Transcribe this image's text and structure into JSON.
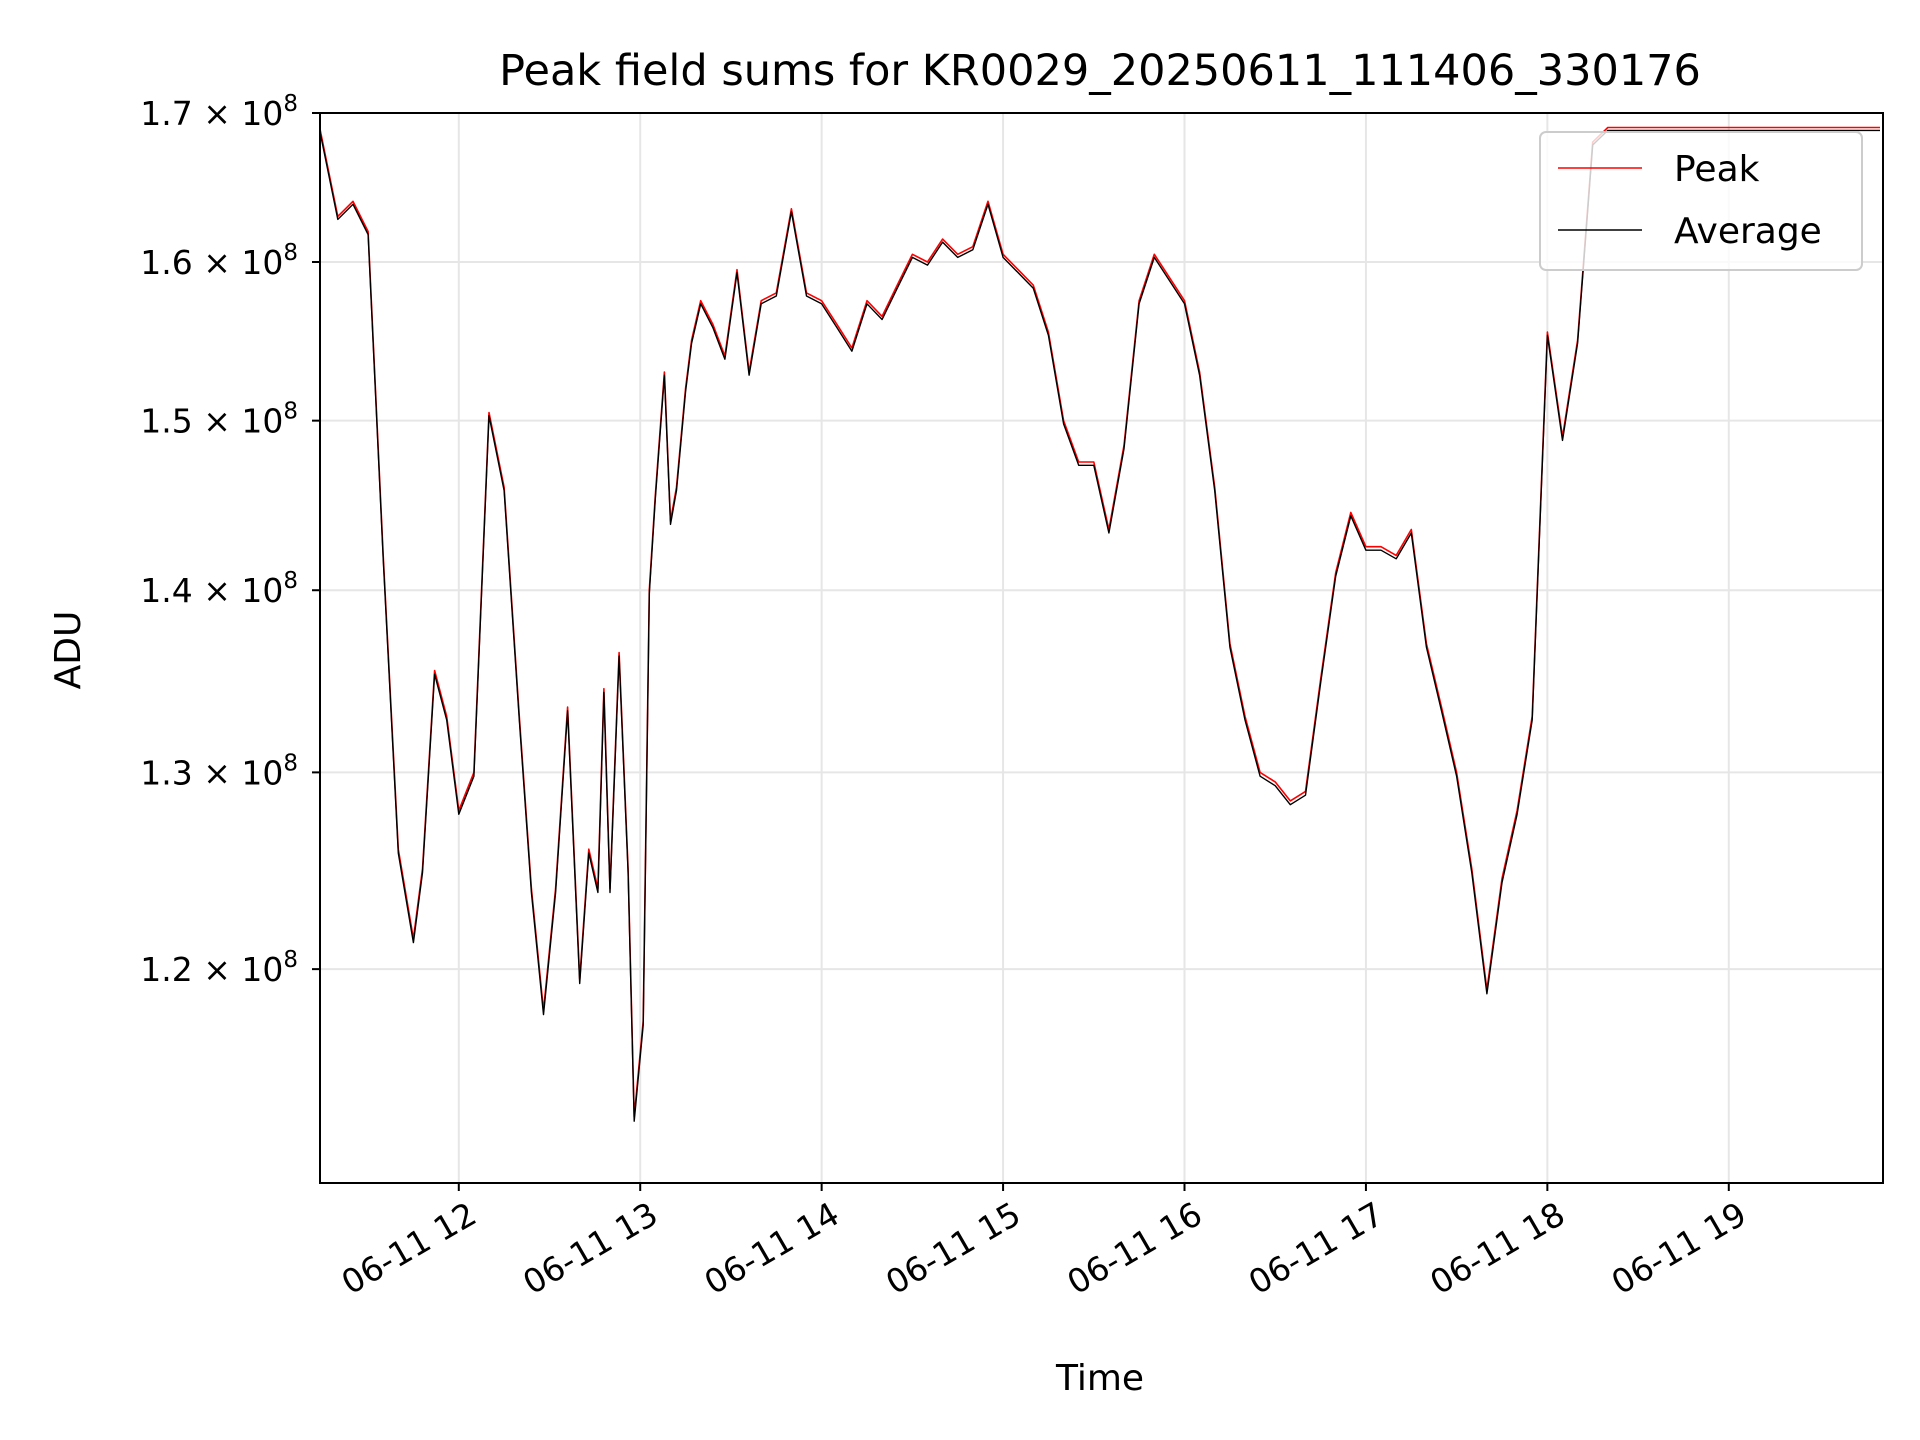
{
  "chart_data": {
    "type": "line",
    "title": "Peak field sums for KR0029_20250611_111406_330176",
    "xlabel": "Time",
    "ylabel": "ADU",
    "y_scale": "log",
    "xlim": [
      "2025-06-11T11:14:06",
      "2025-06-11T19:51:00"
    ],
    "ylim": [
      110000000,
      170000000
    ],
    "grid": true,
    "legend_position": "top-right",
    "x_ticks": [
      {
        "value": "2025-06-11T12:00",
        "label": "06-11 12"
      },
      {
        "value": "2025-06-11T13:00",
        "label": "06-11 13"
      },
      {
        "value": "2025-06-11T14:00",
        "label": "06-11 14"
      },
      {
        "value": "2025-06-11T15:00",
        "label": "06-11 15"
      },
      {
        "value": "2025-06-11T16:00",
        "label": "06-11 16"
      },
      {
        "value": "2025-06-11T17:00",
        "label": "06-11 17"
      },
      {
        "value": "2025-06-11T18:00",
        "label": "06-11 18"
      },
      {
        "value": "2025-06-11T19:00",
        "label": "06-11 19"
      }
    ],
    "y_ticks": [
      {
        "value": 120000000,
        "mantissa": "1.2 × 10",
        "exp": "8"
      },
      {
        "value": 130000000,
        "mantissa": "1.3 × 10",
        "exp": "8"
      },
      {
        "value": 140000000,
        "mantissa": "1.4 × 10",
        "exp": "8"
      },
      {
        "value": 150000000,
        "mantissa": "1.5 × 10",
        "exp": "8"
      },
      {
        "value": 160000000,
        "mantissa": "1.6 × 10",
        "exp": "8"
      },
      {
        "value": 170000000,
        "mantissa": "1.7 × 10",
        "exp": "8"
      }
    ],
    "x": [
      "11:14",
      "11:20",
      "11:25",
      "11:30",
      "11:35",
      "11:40",
      "11:45",
      "11:48",
      "11:52",
      "11:56",
      "12:00",
      "12:05",
      "12:10",
      "12:15",
      "12:20",
      "12:24",
      "12:28",
      "12:32",
      "12:36",
      "12:40",
      "12:43",
      "12:46",
      "12:48",
      "12:50",
      "12:53",
      "12:56",
      "12:58",
      "13:01",
      "13:03",
      "13:05",
      "13:08",
      "13:10",
      "13:12",
      "13:15",
      "13:17",
      "13:20",
      "13:24",
      "13:28",
      "13:32",
      "13:36",
      "13:40",
      "13:45",
      "13:50",
      "13:55",
      "14:00",
      "14:05",
      "14:10",
      "14:15",
      "14:20",
      "14:25",
      "14:30",
      "14:35",
      "14:40",
      "14:45",
      "14:50",
      "14:55",
      "15:00",
      "15:05",
      "15:10",
      "15:15",
      "15:20",
      "15:25",
      "15:30",
      "15:35",
      "15:40",
      "15:45",
      "15:50",
      "15:55",
      "16:00",
      "16:05",
      "16:10",
      "16:15",
      "16:20",
      "16:25",
      "16:30",
      "16:35",
      "16:40",
      "16:45",
      "16:50",
      "16:55",
      "17:00",
      "17:05",
      "17:10",
      "17:15",
      "17:20",
      "17:25",
      "17:30",
      "17:35",
      "17:40",
      "17:45",
      "17:50",
      "17:55",
      "18:00",
      "18:05",
      "18:10",
      "18:15",
      "18:20",
      "18:25",
      "18:30",
      "18:35",
      "18:40",
      "18:45",
      "18:50",
      "18:55",
      "19:00",
      "19:05",
      "19:10",
      "19:15",
      "19:20",
      "19:25",
      "19:30",
      "19:35",
      "19:40",
      "19:45",
      "19:50"
    ],
    "series": [
      {
        "name": "Peak",
        "color": "#ff0000",
        "values": [
          169000000,
          163000000,
          164000000,
          162000000,
          142000000,
          126000000,
          121500000,
          125000000,
          135500000,
          133000000,
          128000000,
          130000000,
          150500000,
          146000000,
          133000000,
          124000000,
          118000000,
          124000000,
          133500000,
          119500000,
          126000000,
          124000000,
          134500000,
          124000000,
          136500000,
          125000000,
          113000000,
          117500000,
          140000000,
          145500000,
          153000000,
          144000000,
          146000000,
          152000000,
          155000000,
          157500000,
          156000000,
          154000000,
          159500000,
          153000000,
          157500000,
          158000000,
          163500000,
          158000000,
          157500000,
          156000000,
          154500000,
          157500000,
          156500000,
          158500000,
          160500000,
          160000000,
          161500000,
          160500000,
          161000000,
          164000000,
          160500000,
          159500000,
          158500000,
          155500000,
          150000000,
          147500000,
          147500000,
          143500000,
          148500000,
          157500000,
          160500000,
          159000000,
          157500000,
          153000000,
          146000000,
          137000000,
          133000000,
          130000000,
          129500000,
          128500000,
          129000000,
          135000000,
          141000000,
          144500000,
          142500000,
          142500000,
          142000000,
          143500000,
          137000000,
          133500000,
          130000000,
          125000000,
          119000000,
          124500000,
          128000000,
          133000000,
          155500000,
          149000000,
          155000000,
          168000000,
          169000000,
          169000000,
          169000000,
          169000000,
          169000000,
          169000000,
          169000000,
          169000000,
          169000000,
          169000000,
          169000000,
          169000000,
          169000000,
          169000000,
          169000000,
          169000000,
          169000000,
          169000000,
          169000000
        ]
      },
      {
        "name": "Average",
        "color": "#000000",
        "values": [
          168800000,
          162800000,
          163800000,
          161800000,
          141800000,
          125800000,
          121300000,
          124800000,
          135300000,
          132800000,
          127800000,
          129800000,
          150300000,
          145800000,
          132800000,
          123800000,
          117800000,
          123800000,
          133300000,
          119300000,
          125800000,
          123800000,
          134300000,
          123800000,
          136300000,
          124800000,
          112800000,
          117300000,
          139800000,
          145300000,
          152800000,
          143800000,
          145800000,
          151800000,
          154800000,
          157300000,
          155800000,
          153800000,
          159300000,
          152800000,
          157300000,
          157800000,
          163300000,
          157800000,
          157300000,
          155800000,
          154300000,
          157300000,
          156300000,
          158300000,
          160300000,
          159800000,
          161300000,
          160300000,
          160800000,
          163800000,
          160300000,
          159300000,
          158300000,
          155300000,
          149800000,
          147300000,
          147300000,
          143300000,
          148300000,
          157300000,
          160300000,
          158800000,
          157300000,
          152800000,
          145800000,
          136800000,
          132800000,
          129800000,
          129300000,
          128300000,
          128800000,
          134800000,
          140800000,
          144300000,
          142300000,
          142300000,
          141800000,
          143300000,
          136800000,
          133300000,
          129800000,
          124800000,
          118800000,
          124300000,
          127800000,
          132800000,
          155300000,
          148800000,
          154800000,
          167800000,
          168800000,
          168800000,
          168800000,
          168800000,
          168800000,
          168800000,
          168800000,
          168800000,
          168800000,
          168800000,
          168800000,
          168800000,
          168800000,
          168800000,
          168800000,
          168800000,
          168800000,
          168800000,
          168800000
        ]
      }
    ]
  }
}
